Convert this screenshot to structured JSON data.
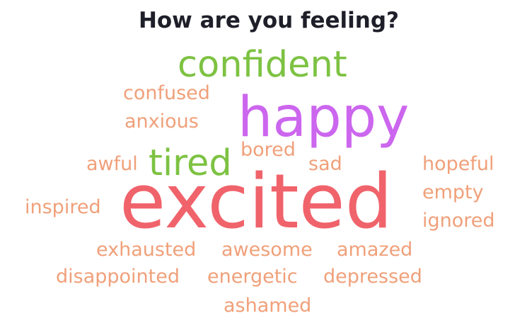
{
  "title": "How are you feeling?",
  "colors": {
    "green": "#7dc242",
    "purple": "#cc66ee",
    "red": "#f0636b",
    "peach": "#f0a07a",
    "title": "#1f1f2a"
  },
  "words": {
    "confident": {
      "text": "confident",
      "color": "#7dc242"
    },
    "happy": {
      "text": "happy",
      "color": "#cc66ee"
    },
    "excited": {
      "text": "excited",
      "color": "#f0636b"
    },
    "tired": {
      "text": "tired",
      "color": "#7dc242"
    },
    "confused": {
      "text": "confused",
      "color": "#f0a07a"
    },
    "anxious": {
      "text": "anxious",
      "color": "#f0a07a"
    },
    "bored": {
      "text": "bored",
      "color": "#f0a07a"
    },
    "sad": {
      "text": "sad",
      "color": "#f0a07a"
    },
    "awful": {
      "text": "awful",
      "color": "#f0a07a"
    },
    "hopeful": {
      "text": "hopeful",
      "color": "#f0a07a"
    },
    "empty": {
      "text": "empty",
      "color": "#f0a07a"
    },
    "ignored": {
      "text": "ignored",
      "color": "#f0a07a"
    },
    "inspired": {
      "text": "inspired",
      "color": "#f0a07a"
    },
    "exhausted": {
      "text": "exhausted",
      "color": "#f0a07a"
    },
    "awesome": {
      "text": "awesome",
      "color": "#f0a07a"
    },
    "amazed": {
      "text": "amazed",
      "color": "#f0a07a"
    },
    "disappointed": {
      "text": "disappointed",
      "color": "#f0a07a"
    },
    "energetic": {
      "text": "energetic",
      "color": "#f0a07a"
    },
    "depressed": {
      "text": "depressed",
      "color": "#f0a07a"
    },
    "ashamed": {
      "text": "ashamed",
      "color": "#f0a07a"
    }
  }
}
